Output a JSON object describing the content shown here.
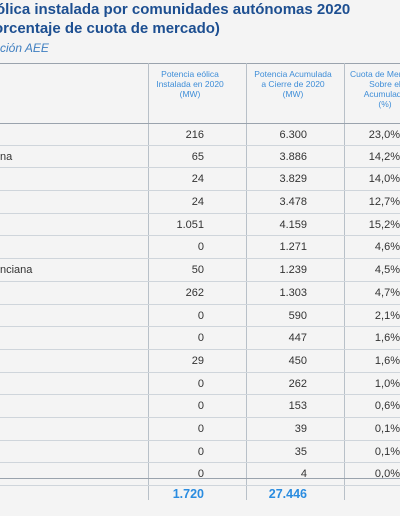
{
  "title": {
    "line1": "ólica instalada por comunidades autónomas 2020",
    "line2": "orcentaje de cuota de mercado)"
  },
  "source": "ción AEE",
  "table": {
    "headers": [
      {
        "lines": "Potencia eólica Instalada en 2020",
        "unit": "(MW)"
      },
      {
        "lines": "Potencia Acumulada a Cierre de 2020",
        "unit": "(MW)"
      },
      {
        "lines": "Cuota de Mercado Sobre el Acumulado",
        "unit": "(%)"
      }
    ],
    "rows": [
      {
        "name": "",
        "installed": "216",
        "accumulated": "6.300",
        "share": "23,0%"
      },
      {
        "name": "na",
        "installed": "65",
        "accumulated": "3.886",
        "share": "14,2%"
      },
      {
        "name": "",
        "installed": "24",
        "accumulated": "3.829",
        "share": "14,0%"
      },
      {
        "name": "",
        "installed": "24",
        "accumulated": "3.478",
        "share": "12,7%"
      },
      {
        "name": "",
        "installed": "1.051",
        "accumulated": "4.159",
        "share": "15,2%"
      },
      {
        "name": "",
        "installed": "0",
        "accumulated": "1.271",
        "share": "4,6%"
      },
      {
        "name": "nciana",
        "installed": "50",
        "accumulated": "1.239",
        "share": "4,5%"
      },
      {
        "name": "",
        "installed": "262",
        "accumulated": "1.303",
        "share": "4,7%"
      },
      {
        "name": "",
        "installed": "0",
        "accumulated": "590",
        "share": "2,1%"
      },
      {
        "name": "",
        "installed": "0",
        "accumulated": "447",
        "share": "1,6%"
      },
      {
        "name": "",
        "installed": "29",
        "accumulated": "450",
        "share": "1,6%"
      },
      {
        "name": "",
        "installed": "0",
        "accumulated": "262",
        "share": "1,0%"
      },
      {
        "name": "",
        "installed": "0",
        "accumulated": "153",
        "share": "0,6%"
      },
      {
        "name": "",
        "installed": "0",
        "accumulated": "39",
        "share": "0,1%"
      },
      {
        "name": "",
        "installed": "0",
        "accumulated": "35",
        "share": "0,1%"
      },
      {
        "name": "",
        "installed": "0",
        "accumulated": "4",
        "share": "0,0%"
      }
    ],
    "total": {
      "installed": "1.720",
      "accumulated": "27.446"
    }
  }
}
